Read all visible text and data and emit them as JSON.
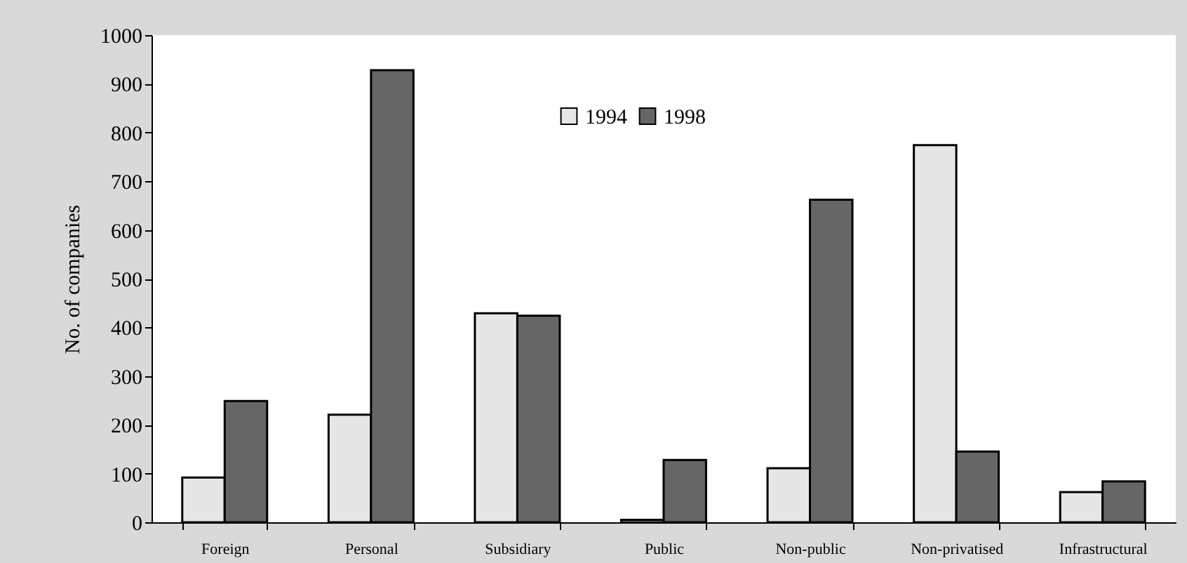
{
  "chart_data": {
    "type": "bar",
    "ylabel": "No. of companies",
    "categories": [
      "Foreign",
      "Personal",
      "Subsidiary",
      "Public",
      "Non-public",
      "Non-privatised",
      "Infrastructural"
    ],
    "series": [
      {
        "name": "1994",
        "color": "#e6e6e6",
        "values": [
          92,
          221,
          429,
          5,
          111,
          774,
          62
        ]
      },
      {
        "name": "1998",
        "color": "#666666",
        "values": [
          249,
          928,
          424,
          128,
          662,
          145,
          84
        ]
      }
    ],
    "ylim": [
      0,
      1000
    ],
    "yticks": [
      0,
      100,
      200,
      300,
      400,
      500,
      600,
      700,
      800,
      900,
      1000
    ],
    "grid": false,
    "legend": "top"
  }
}
